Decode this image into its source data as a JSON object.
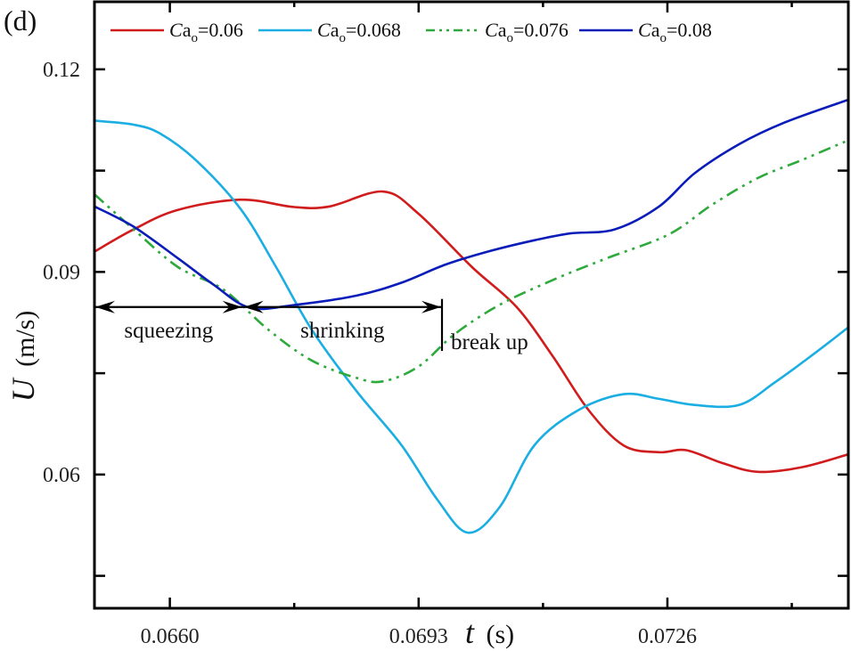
{
  "chart_data": {
    "type": "line",
    "panel_label": "(d)",
    "title": "",
    "xlabel": {
      "symbol": "t",
      "unit": "(s)"
    },
    "ylabel": {
      "symbol": "U",
      "unit": "(m/s)"
    },
    "xlim": [
      0.065,
      0.075
    ],
    "ylim": [
      0.0402,
      0.13
    ],
    "xticks": {
      "major": [
        0.066,
        0.0693,
        0.0726
      ],
      "labels": [
        "0.0660",
        "0.0693",
        "0.0726"
      ],
      "minor": [
        0.06765,
        0.07095,
        0.07425
      ]
    },
    "yticks": {
      "major": [
        0.06,
        0.09,
        0.12
      ],
      "labels": [
        "0.06",
        "0.09",
        "0.12"
      ],
      "minor": [
        0.045,
        0.075,
        0.105
      ]
    },
    "grid": false,
    "legend": {
      "placement": "top",
      "orientation": "horizontal"
    },
    "series": [
      {
        "name": "Ca_o=0.06",
        "label_prefix": "Ca",
        "label_sub": "o",
        "label_value": "=0.06",
        "color": "#d01c1c",
        "style": "solid",
        "x": [
          0.065,
          0.06552,
          0.06611,
          0.06694,
          0.06765,
          0.06812,
          0.06883,
          0.0693,
          0.07001,
          0.0706,
          0.07108,
          0.07155,
          0.07202,
          0.07249,
          0.07285,
          0.07333,
          0.0738,
          0.07439,
          0.075
        ],
        "y": [
          0.093,
          0.0963,
          0.0992,
          0.1007,
          0.0996,
          0.0997,
          0.1019,
          0.0986,
          0.0907,
          0.0848,
          0.0775,
          0.0696,
          0.0643,
          0.0633,
          0.0636,
          0.0617,
          0.0604,
          0.0611,
          0.063
        ]
      },
      {
        "name": "Ca_o=0.068",
        "label_prefix": "Ca",
        "label_sub": "o",
        "label_value": "=0.068",
        "color": "#1aaee3",
        "style": "solid",
        "x": [
          0.065,
          0.06552,
          0.06587,
          0.06635,
          0.06694,
          0.06741,
          0.06788,
          0.06848,
          0.06907,
          0.06954,
          0.06995,
          0.07037,
          0.07084,
          0.07143,
          0.07202,
          0.07249,
          0.07296,
          0.07355,
          0.07402,
          0.0745,
          0.075
        ],
        "y": [
          0.1124,
          0.1118,
          0.1105,
          0.1065,
          0.0993,
          0.0907,
          0.0815,
          0.0723,
          0.0644,
          0.0564,
          0.0514,
          0.0551,
          0.0644,
          0.0696,
          0.0719,
          0.0712,
          0.0703,
          0.0703,
          0.0736,
          0.0775,
          0.0818
        ]
      },
      {
        "name": "Ca_o=0.076",
        "label_prefix": "Ca",
        "label_sub": "o",
        "label_value": "=0.076",
        "color": "#2eaa3c",
        "style": "dash-dot-dot",
        "x": [
          0.065,
          0.06552,
          0.06611,
          0.06671,
          0.0673,
          0.06788,
          0.06848,
          0.06883,
          0.0693,
          0.06978,
          0.07037,
          0.07108,
          0.07179,
          0.07261,
          0.0732,
          0.0738,
          0.07439,
          0.075
        ],
        "y": [
          0.1015,
          0.0963,
          0.0907,
          0.0874,
          0.0815,
          0.0769,
          0.0743,
          0.0738,
          0.076,
          0.0808,
          0.0851,
          0.0888,
          0.092,
          0.0955,
          0.1,
          0.1039,
          0.1066,
          0.1095
        ]
      },
      {
        "name": "Ca_o=0.08",
        "label_prefix": "Ca",
        "label_sub": "o",
        "label_value": "=0.08",
        "color": "#0b1db8",
        "style": "solid",
        "x": [
          0.065,
          0.06552,
          0.06611,
          0.06658,
          0.06706,
          0.06765,
          0.06848,
          0.06907,
          0.06966,
          0.07025,
          0.07084,
          0.07131,
          0.0719,
          0.07249,
          0.07296,
          0.07355,
          0.07415,
          0.075
        ],
        "y": [
          0.0997,
          0.0967,
          0.092,
          0.0881,
          0.0847,
          0.0851,
          0.0865,
          0.0884,
          0.0911,
          0.0931,
          0.0947,
          0.0957,
          0.0963,
          0.0997,
          0.1046,
          0.1089,
          0.1121,
          0.1155
        ]
      }
    ],
    "annotations": [
      {
        "type": "double-arrow",
        "label": "squeezing",
        "x_start": 0.065,
        "x_end": 0.06697,
        "y": 0.0848
      },
      {
        "type": "double-arrow",
        "label": "shrinking",
        "x_start": 0.06697,
        "x_end": 0.06961,
        "y": 0.0848
      },
      {
        "type": "vertical-marker",
        "label": "break up",
        "x": 0.06961,
        "y_start": 0.086,
        "y_end": 0.0783
      }
    ]
  }
}
